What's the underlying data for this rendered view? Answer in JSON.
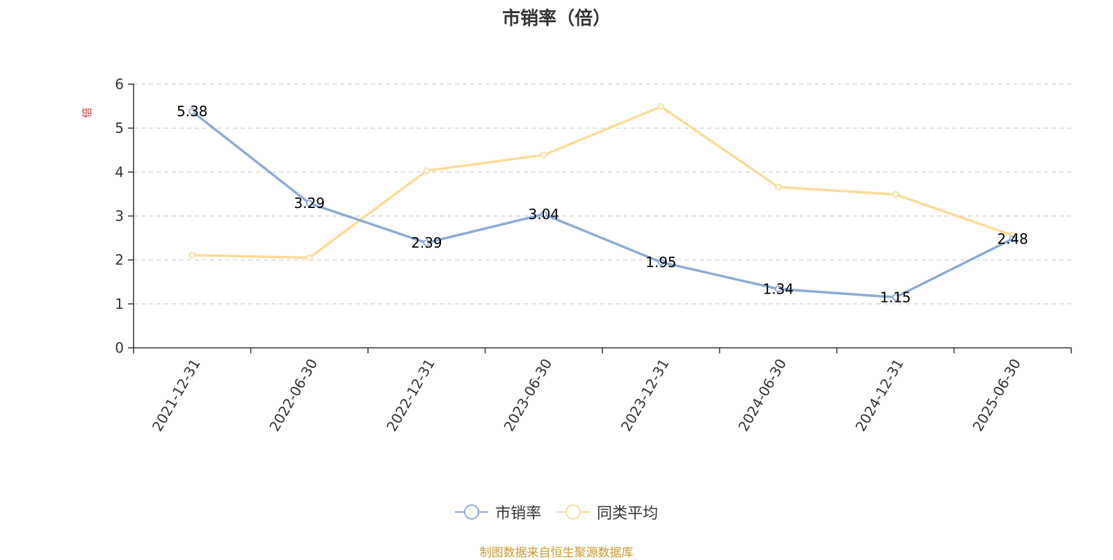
{
  "chart_data": {
    "type": "line",
    "title": "市销率（倍）",
    "ylabel": "倍",
    "xlabel": "",
    "categories": [
      "2021-12-31",
      "2022-06-30",
      "2022-12-31",
      "2023-06-30",
      "2023-12-31",
      "2024-06-30",
      "2024-12-31",
      "2025-06-30"
    ],
    "ylim": [
      0,
      6
    ],
    "yticks": [
      "0",
      "1",
      "2",
      "3",
      "4",
      "5",
      "6"
    ],
    "grid": true,
    "legend_position": "bottom",
    "series": [
      {
        "name": "市销率",
        "color": "#8eabd6",
        "values": [
          5.38,
          3.29,
          2.39,
          3.04,
          1.95,
          1.34,
          1.15,
          2.48
        ],
        "labels": [
          "5.38",
          "3.29",
          "2.39",
          "3.04",
          "1.95",
          "1.34",
          "1.15",
          "2.48"
        ]
      },
      {
        "name": "同类平均",
        "color": "#fbdb9a",
        "values": [
          2.11,
          2.05,
          4.03,
          4.39,
          5.49,
          3.66,
          3.49,
          2.56
        ]
      }
    ]
  },
  "source_note": "制图数据来自恒生聚源数据库"
}
